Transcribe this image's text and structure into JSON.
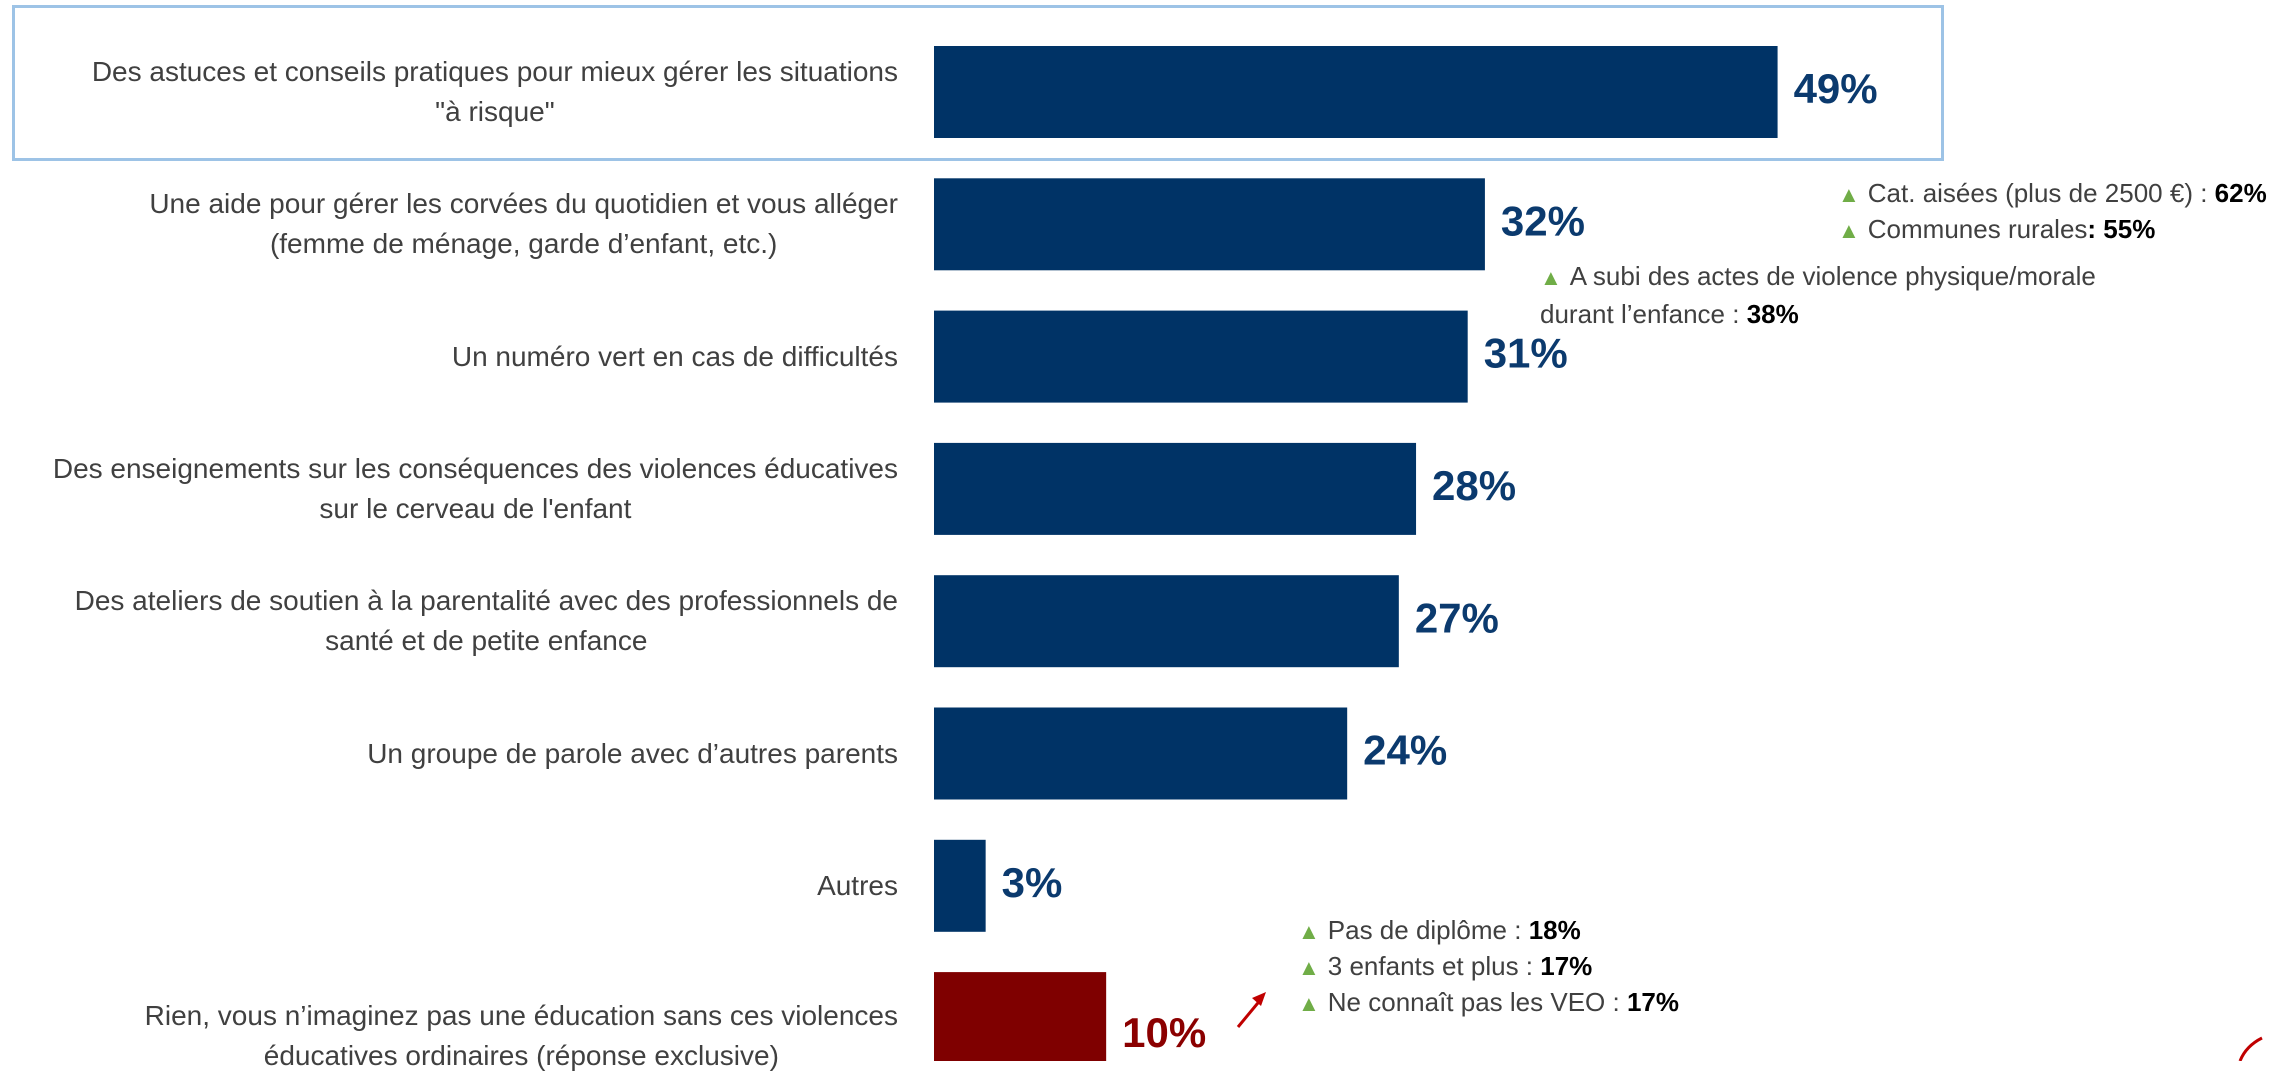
{
  "chart_data": {
    "type": "bar",
    "orientation": "horizontal",
    "categories": [
      "Des astuces et conseils pratiques pour mieux gérer les situations \"à risque\"",
      "Une aide pour gérer les corvées du quotidien et vous alléger (femme de ménage, garde d’enfant, etc.)",
      "Un numéro vert en cas de difficultés",
      "Des enseignements sur les conséquences des violences éducatives sur le cerveau de l'enfant",
      "Des ateliers de soutien à la parentalité avec des professionnels de santé et de petite enfance",
      "Un groupe de parole avec d’autres parents",
      "Autres",
      "Rien, vous n’imaginez pas une éducation sans ces violences éducatives ordinaires (réponse exclusive)"
    ],
    "label_lines": [
      [
        "Des astuces et conseils pratiques pour mieux gérer les situations",
        "\"à risque\""
      ],
      [
        "Une aide pour gérer les corvées du quotidien et vous alléger",
        "(femme de ménage, garde d’enfant, etc.)"
      ],
      [
        "Un numéro vert en cas de difficultés"
      ],
      [
        "Des enseignements sur les conséquences des violences éducatives",
        "sur le cerveau de l'enfant"
      ],
      [
        "Des ateliers de soutien à la parentalité avec des professionnels de",
        "santé et de petite enfance"
      ],
      [
        "Un groupe de parole avec d’autres parents"
      ],
      [
        "Autres"
      ],
      [
        "Rien, vous n’imaginez pas une éducation sans ces violences",
        "éducatives ordinaires (réponse exclusive)"
      ]
    ],
    "values": [
      49,
      32,
      31,
      28,
      27,
      24,
      3,
      10
    ],
    "value_labels": [
      "49%",
      "32%",
      "31%",
      "28%",
      "27%",
      "24%",
      "3%",
      "10%"
    ],
    "xlim": [
      0,
      100
    ],
    "title": "",
    "xlabel": "",
    "ylabel": "",
    "grid": false,
    "colors": {
      "default_bar": "#003366",
      "exclusive_bar": "#7f0000",
      "default_label": "#0b3a6e",
      "exclusive_label": "#8b0000",
      "highlight_border": "#9dc3e6",
      "up_triangle": "#70ad47"
    }
  },
  "annotations": {
    "a1_text": "Cat. aisées (plus de 2500 €) :",
    "a1_value": "62%",
    "a2_text": "Communes rurales",
    "a2_value": ": 55%",
    "a3_text": "A subi des actes de violence physique/morale durant l’enfance :",
    "a3_value": "38%",
    "a4_text": "Pas de diplôme :",
    "a4_value": "18%",
    "a5_text": "3 enfants et plus :",
    "a5_value": "17%",
    "a6_text": "Ne connaît pas les VEO  :",
    "a6_value": "17%",
    "up_symbol": "▲"
  }
}
